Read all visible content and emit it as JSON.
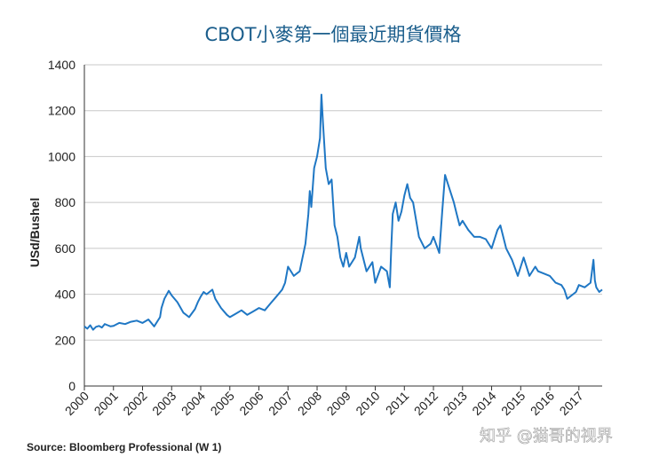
{
  "chart_data": {
    "type": "line",
    "title": "CBOT小麥第一個最近期貨價格",
    "ylabel": "USd/Bushel",
    "xlabel": "",
    "ylim": [
      0,
      1400
    ],
    "yticks": [
      0,
      200,
      400,
      600,
      800,
      1000,
      1200,
      1400
    ],
    "xlim": [
      2000,
      2017.8
    ],
    "xticks": [
      "2000",
      "2001",
      "2002",
      "2003",
      "2004",
      "2005",
      "2006",
      "2007",
      "2008",
      "2009",
      "2010",
      "2011",
      "2012",
      "2013",
      "2014",
      "2015",
      "2016",
      "2017"
    ],
    "grid": "horizontal",
    "line_color": "#1f77c4",
    "source": "Source: Bloomberg Professional (W 1)",
    "watermark": "知乎 @猫哥的视界",
    "series": [
      {
        "x": [
          2000.0,
          2000.1,
          2000.2,
          2000.3,
          2000.4,
          2000.5,
          2000.6,
          2000.7,
          2000.8,
          2000.9,
          2001.0,
          2001.2,
          2001.4,
          2001.6,
          2001.8,
          2002.0,
          2002.2,
          2002.4,
          2002.6,
          2002.65,
          2002.75,
          2002.9,
          2003.0,
          2003.2,
          2003.4,
          2003.6,
          2003.8,
          2003.9,
          2004.0,
          2004.1,
          2004.2,
          2004.4,
          2004.5,
          2004.7,
          2004.9,
          2005.0,
          2005.2,
          2005.4,
          2005.6,
          2005.8,
          2006.0,
          2006.2,
          2006.4,
          2006.6,
          2006.8,
          2006.9,
          2007.0,
          2007.2,
          2007.4,
          2007.6,
          2007.7,
          2007.75,
          2007.8,
          2007.9,
          2008.0,
          2008.1,
          2008.15,
          2008.2,
          2008.3,
          2008.4,
          2008.5,
          2008.55,
          2008.6,
          2008.7,
          2008.8,
          2008.9,
          2009.0,
          2009.1,
          2009.3,
          2009.45,
          2009.5,
          2009.7,
          2009.9,
          2010.0,
          2010.2,
          2010.4,
          2010.5,
          2010.55,
          2010.6,
          2010.7,
          2010.8,
          2010.9,
          2011.0,
          2011.1,
          2011.2,
          2011.3,
          2011.5,
          2011.7,
          2011.9,
          2012.0,
          2012.2,
          2012.3,
          2012.4,
          2012.5,
          2012.6,
          2012.7,
          2012.8,
          2012.9,
          2013.0,
          2013.2,
          2013.4,
          2013.6,
          2013.8,
          2014.0,
          2014.2,
          2014.3,
          2014.5,
          2014.7,
          2014.9,
          2015.0,
          2015.1,
          2015.3,
          2015.5,
          2015.6,
          2015.8,
          2016.0,
          2016.2,
          2016.4,
          2016.5,
          2016.6,
          2016.8,
          2016.9,
          2017.0,
          2017.2,
          2017.4,
          2017.5,
          2017.55,
          2017.6,
          2017.7,
          2017.8
        ],
        "y": [
          260,
          250,
          265,
          245,
          258,
          262,
          255,
          270,
          265,
          260,
          262,
          275,
          270,
          280,
          285,
          275,
          290,
          260,
          300,
          340,
          380,
          415,
          395,
          365,
          320,
          300,
          335,
          365,
          390,
          410,
          400,
          420,
          380,
          340,
          310,
          300,
          315,
          330,
          310,
          325,
          340,
          330,
          360,
          390,
          420,
          450,
          520,
          480,
          500,
          620,
          750,
          850,
          780,
          950,
          1000,
          1080,
          1270,
          1150,
          950,
          880,
          900,
          800,
          700,
          650,
          560,
          520,
          580,
          520,
          560,
          650,
          600,
          500,
          540,
          450,
          520,
          500,
          430,
          600,
          750,
          800,
          720,
          760,
          830,
          880,
          820,
          800,
          650,
          600,
          620,
          650,
          580,
          760,
          920,
          880,
          840,
          800,
          750,
          700,
          720,
          680,
          650,
          650,
          640,
          600,
          680,
          700,
          600,
          550,
          480,
          520,
          560,
          480,
          520,
          500,
          490,
          480,
          450,
          440,
          420,
          380,
          400,
          410,
          440,
          430,
          450,
          550,
          460,
          430,
          410,
          420
        ]
      }
    ]
  }
}
